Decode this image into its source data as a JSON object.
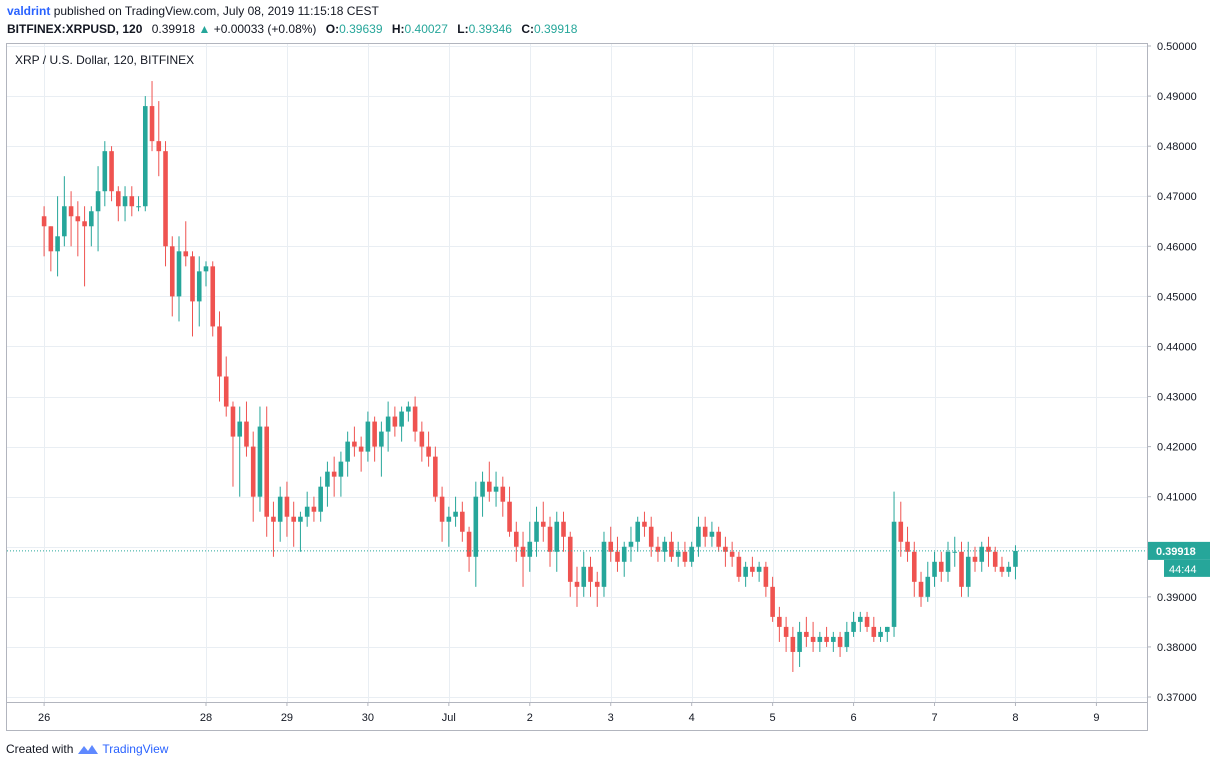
{
  "header": {
    "user": "valdrint",
    "published_text": "published on TradingView.com, July 08, 2019 11:15:18 CEST",
    "symbol": "BITFINEX:XRPUSD, 120",
    "last_price": "0.39918",
    "change": "+0.00033 (+0.08%)",
    "open_label": "O:",
    "open_value": "0.39639",
    "high_label": "H:",
    "high_value": "0.40027",
    "low_label": "L:",
    "low_value": "0.39346",
    "close_label": "C:",
    "close_value": "0.39918"
  },
  "legend_title": "XRP / U.S. Dollar, 120, BITFINEX",
  "footer": {
    "created_with": "Created with",
    "brand": "TradingView"
  },
  "colors": {
    "up": "#26a69a",
    "down": "#ef5350",
    "grid": "#e9eef3",
    "price_line": "#26a69a"
  },
  "chart_data": {
    "type": "candlestick",
    "title": "XRP / U.S. Dollar, 120, BITFINEX",
    "ylim": [
      0.368,
      0.501
    ],
    "y_ticks": [
      "0.37000",
      "0.38000",
      "0.39000",
      "0.40000",
      "0.41000",
      "0.42000",
      "0.43000",
      "0.44000",
      "0.45000",
      "0.46000",
      "0.47000",
      "0.48000",
      "0.49000",
      "0.50000"
    ],
    "y_tick_values": [
      0.37,
      0.38,
      0.39,
      0.4,
      0.41,
      0.42,
      0.43,
      0.44,
      0.45,
      0.46,
      0.47,
      0.48,
      0.49,
      0.5
    ],
    "x_tick_labels": [
      "26",
      "28",
      "29",
      "30",
      "Jul",
      "2",
      "3",
      "4",
      "5",
      "6",
      "7",
      "8",
      "9"
    ],
    "x_tick_positions": [
      0,
      24,
      36,
      48,
      60,
      72,
      84,
      96,
      108,
      120,
      132,
      144,
      156
    ],
    "x_range": [
      -5.5,
      163.5
    ],
    "grid": true,
    "current_price_label": "0.39918",
    "countdown_label": "44:44",
    "current_price": 0.39918,
    "candles": [
      [
        0.466,
        0.468,
        0.458,
        0.464
      ],
      [
        0.464,
        0.464,
        0.455,
        0.459
      ],
      [
        0.459,
        0.47,
        0.454,
        0.462
      ],
      [
        0.462,
        0.474,
        0.46,
        0.468
      ],
      [
        0.468,
        0.471,
        0.46,
        0.466
      ],
      [
        0.466,
        0.469,
        0.458,
        0.465
      ],
      [
        0.465,
        0.468,
        0.452,
        0.464
      ],
      [
        0.464,
        0.468,
        0.46,
        0.467
      ],
      [
        0.467,
        0.476,
        0.459,
        0.471
      ],
      [
        0.471,
        0.481,
        0.468,
        0.479
      ],
      [
        0.479,
        0.48,
        0.469,
        0.471
      ],
      [
        0.471,
        0.472,
        0.465,
        0.468
      ],
      [
        0.468,
        0.472,
        0.465,
        0.47
      ],
      [
        0.47,
        0.472,
        0.466,
        0.468
      ],
      [
        0.468,
        0.47,
        0.467,
        0.468
      ],
      [
        0.468,
        0.49,
        0.467,
        0.488
      ],
      [
        0.488,
        0.493,
        0.479,
        0.481
      ],
      [
        0.481,
        0.489,
        0.474,
        0.479
      ],
      [
        0.479,
        0.481,
        0.456,
        0.46
      ],
      [
        0.46,
        0.462,
        0.446,
        0.45
      ],
      [
        0.45,
        0.462,
        0.445,
        0.459
      ],
      [
        0.459,
        0.465,
        0.456,
        0.458
      ],
      [
        0.458,
        0.459,
        0.442,
        0.449
      ],
      [
        0.449,
        0.458,
        0.444,
        0.455
      ],
      [
        0.455,
        0.457,
        0.452,
        0.456
      ],
      [
        0.456,
        0.457,
        0.442,
        0.444
      ],
      [
        0.444,
        0.447,
        0.429,
        0.434
      ],
      [
        0.434,
        0.438,
        0.426,
        0.428
      ],
      [
        0.428,
        0.429,
        0.412,
        0.422
      ],
      [
        0.422,
        0.428,
        0.41,
        0.425
      ],
      [
        0.425,
        0.429,
        0.418,
        0.42
      ],
      [
        0.42,
        0.423,
        0.405,
        0.41
      ],
      [
        0.41,
        0.428,
        0.407,
        0.424
      ],
      [
        0.424,
        0.428,
        0.402,
        0.406
      ],
      [
        0.406,
        0.409,
        0.398,
        0.405
      ],
      [
        0.405,
        0.412,
        0.401,
        0.41
      ],
      [
        0.41,
        0.413,
        0.402,
        0.406
      ],
      [
        0.406,
        0.409,
        0.4,
        0.405
      ],
      [
        0.405,
        0.407,
        0.399,
        0.406
      ],
      [
        0.406,
        0.411,
        0.404,
        0.408
      ],
      [
        0.408,
        0.41,
        0.405,
        0.407
      ],
      [
        0.407,
        0.414,
        0.405,
        0.412
      ],
      [
        0.412,
        0.417,
        0.408,
        0.415
      ],
      [
        0.415,
        0.418,
        0.41,
        0.414
      ],
      [
        0.414,
        0.419,
        0.41,
        0.417
      ],
      [
        0.417,
        0.423,
        0.414,
        0.421
      ],
      [
        0.421,
        0.424,
        0.418,
        0.42
      ],
      [
        0.42,
        0.422,
        0.415,
        0.419
      ],
      [
        0.419,
        0.427,
        0.417,
        0.425
      ],
      [
        0.425,
        0.426,
        0.417,
        0.42
      ],
      [
        0.42,
        0.425,
        0.414,
        0.423
      ],
      [
        0.423,
        0.429,
        0.419,
        0.426
      ],
      [
        0.426,
        0.428,
        0.422,
        0.424
      ],
      [
        0.424,
        0.428,
        0.421,
        0.427
      ],
      [
        0.427,
        0.429,
        0.425,
        0.428
      ],
      [
        0.428,
        0.43,
        0.421,
        0.423
      ],
      [
        0.423,
        0.425,
        0.417,
        0.42
      ],
      [
        0.42,
        0.423,
        0.416,
        0.418
      ],
      [
        0.418,
        0.42,
        0.409,
        0.41
      ],
      [
        0.41,
        0.412,
        0.401,
        0.405
      ],
      [
        0.405,
        0.408,
        0.4,
        0.406
      ],
      [
        0.406,
        0.41,
        0.404,
        0.407
      ],
      [
        0.407,
        0.409,
        0.401,
        0.403
      ],
      [
        0.403,
        0.404,
        0.395,
        0.398
      ],
      [
        0.398,
        0.413,
        0.392,
        0.41
      ],
      [
        0.41,
        0.415,
        0.406,
        0.413
      ],
      [
        0.413,
        0.417,
        0.409,
        0.411
      ],
      [
        0.411,
        0.415,
        0.408,
        0.412
      ],
      [
        0.412,
        0.414,
        0.406,
        0.409
      ],
      [
        0.409,
        0.412,
        0.402,
        0.403
      ],
      [
        0.403,
        0.405,
        0.397,
        0.4
      ],
      [
        0.4,
        0.403,
        0.392,
        0.398
      ],
      [
        0.398,
        0.405,
        0.395,
        0.401
      ],
      [
        0.401,
        0.408,
        0.398,
        0.405
      ],
      [
        0.405,
        0.409,
        0.401,
        0.404
      ],
      [
        0.404,
        0.406,
        0.396,
        0.399
      ],
      [
        0.399,
        0.407,
        0.395,
        0.405
      ],
      [
        0.405,
        0.407,
        0.399,
        0.402
      ],
      [
        0.402,
        0.403,
        0.39,
        0.393
      ],
      [
        0.393,
        0.396,
        0.388,
        0.392
      ],
      [
        0.392,
        0.399,
        0.39,
        0.396
      ],
      [
        0.396,
        0.398,
        0.39,
        0.393
      ],
      [
        0.393,
        0.395,
        0.388,
        0.392
      ],
      [
        0.392,
        0.403,
        0.39,
        0.401
      ],
      [
        0.401,
        0.404,
        0.397,
        0.399
      ],
      [
        0.399,
        0.402,
        0.395,
        0.397
      ],
      [
        0.397,
        0.401,
        0.394,
        0.4
      ],
      [
        0.4,
        0.404,
        0.397,
        0.401
      ],
      [
        0.401,
        0.406,
        0.399,
        0.405
      ],
      [
        0.405,
        0.407,
        0.402,
        0.404
      ],
      [
        0.404,
        0.406,
        0.398,
        0.4
      ],
      [
        0.4,
        0.402,
        0.397,
        0.399
      ],
      [
        0.399,
        0.402,
        0.397,
        0.401
      ],
      [
        0.401,
        0.403,
        0.397,
        0.398
      ],
      [
        0.398,
        0.401,
        0.396,
        0.399
      ],
      [
        0.399,
        0.401,
        0.396,
        0.397
      ],
      [
        0.397,
        0.401,
        0.396,
        0.4
      ],
      [
        0.4,
        0.406,
        0.398,
        0.404
      ],
      [
        0.404,
        0.406,
        0.4,
        0.402
      ],
      [
        0.402,
        0.405,
        0.4,
        0.403
      ],
      [
        0.403,
        0.404,
        0.399,
        0.4
      ],
      [
        0.4,
        0.402,
        0.396,
        0.399
      ],
      [
        0.399,
        0.401,
        0.396,
        0.398
      ],
      [
        0.398,
        0.399,
        0.393,
        0.394
      ],
      [
        0.394,
        0.397,
        0.392,
        0.396
      ],
      [
        0.396,
        0.398,
        0.394,
        0.395
      ],
      [
        0.395,
        0.397,
        0.393,
        0.396
      ],
      [
        0.396,
        0.397,
        0.39,
        0.392
      ],
      [
        0.392,
        0.394,
        0.385,
        0.386
      ],
      [
        0.386,
        0.388,
        0.381,
        0.384
      ],
      [
        0.384,
        0.386,
        0.379,
        0.382
      ],
      [
        0.382,
        0.384,
        0.375,
        0.379
      ],
      [
        0.379,
        0.385,
        0.376,
        0.383
      ],
      [
        0.383,
        0.386,
        0.38,
        0.382
      ],
      [
        0.382,
        0.385,
        0.379,
        0.381
      ],
      [
        0.381,
        0.383,
        0.379,
        0.382
      ],
      [
        0.382,
        0.384,
        0.38,
        0.381
      ],
      [
        0.381,
        0.383,
        0.379,
        0.382
      ],
      [
        0.382,
        0.383,
        0.378,
        0.38
      ],
      [
        0.38,
        0.385,
        0.379,
        0.383
      ],
      [
        0.383,
        0.387,
        0.382,
        0.385
      ],
      [
        0.385,
        0.387,
        0.383,
        0.386
      ],
      [
        0.386,
        0.387,
        0.383,
        0.384
      ],
      [
        0.384,
        0.386,
        0.381,
        0.382
      ],
      [
        0.382,
        0.384,
        0.381,
        0.383
      ],
      [
        0.383,
        0.384,
        0.381,
        0.384
      ],
      [
        0.384,
        0.411,
        0.382,
        0.405
      ],
      [
        0.405,
        0.409,
        0.398,
        0.401
      ],
      [
        0.401,
        0.404,
        0.397,
        0.399
      ],
      [
        0.399,
        0.401,
        0.39,
        0.393
      ],
      [
        0.393,
        0.395,
        0.388,
        0.39
      ],
      [
        0.39,
        0.397,
        0.389,
        0.394
      ],
      [
        0.394,
        0.399,
        0.392,
        0.397
      ],
      [
        0.397,
        0.399,
        0.393,
        0.395
      ],
      [
        0.395,
        0.401,
        0.393,
        0.399
      ],
      [
        0.399,
        0.402,
        0.396,
        0.399
      ],
      [
        0.399,
        0.401,
        0.39,
        0.392
      ],
      [
        0.392,
        0.401,
        0.39,
        0.398
      ],
      [
        0.398,
        0.4,
        0.395,
        0.397
      ],
      [
        0.397,
        0.401,
        0.395,
        0.4
      ],
      [
        0.4,
        0.402,
        0.396,
        0.399
      ],
      [
        0.399,
        0.4,
        0.395,
        0.396
      ],
      [
        0.396,
        0.398,
        0.394,
        0.395
      ],
      [
        0.395,
        0.397,
        0.394,
        0.396
      ],
      [
        0.396,
        0.4003,
        0.3935,
        0.39918
      ]
    ]
  }
}
